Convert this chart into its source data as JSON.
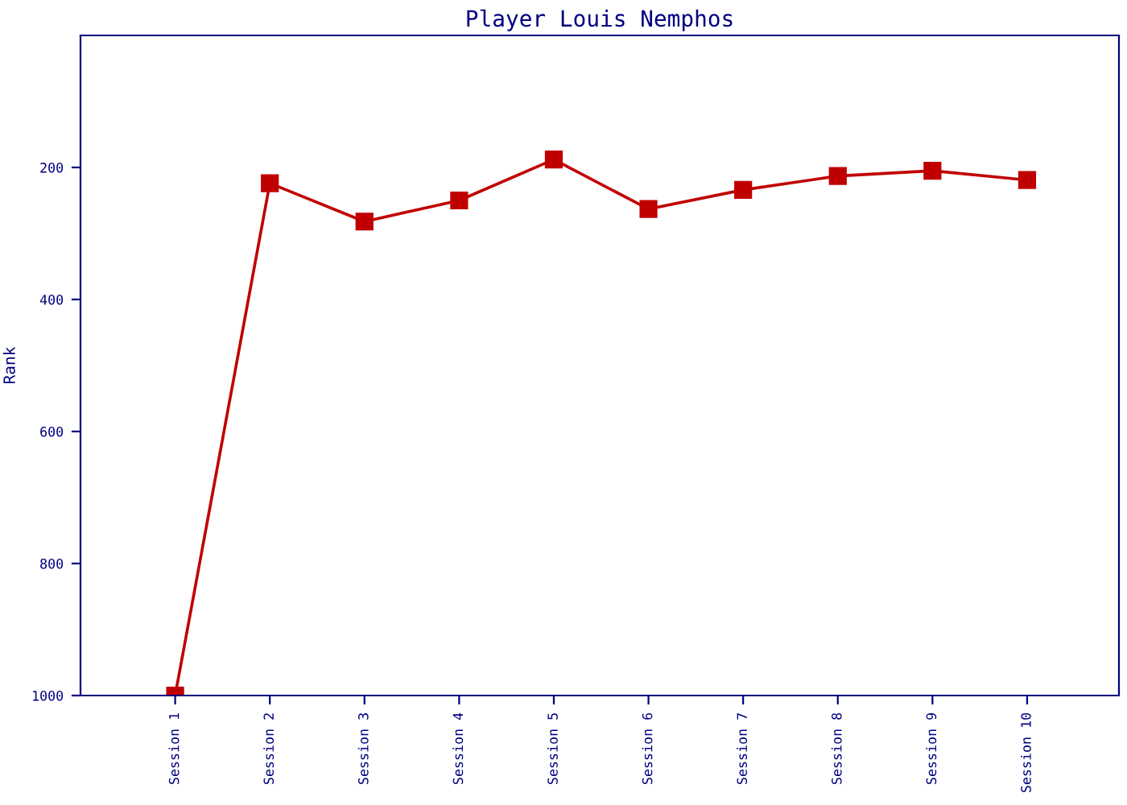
{
  "chart_data": {
    "type": "line",
    "title": "Player Louis Nemphos",
    "ylabel": "Rank",
    "categories": [
      "Session 1",
      "Session 2",
      "Session 3",
      "Session 4",
      "Session 5",
      "Session 6",
      "Session 7",
      "Session 8",
      "Session 9",
      "Session 10"
    ],
    "series": [
      {
        "color": "#c00000",
        "values": [
          1000,
          224,
          282,
          250,
          188,
          263,
          234,
          213,
          205,
          219
        ]
      }
    ],
    "ylim": [
      1000,
      0
    ],
    "yticks": [
      200,
      400,
      600,
      800,
      1000
    ],
    "grid": false,
    "marker": "square",
    "line_style": "solid"
  }
}
